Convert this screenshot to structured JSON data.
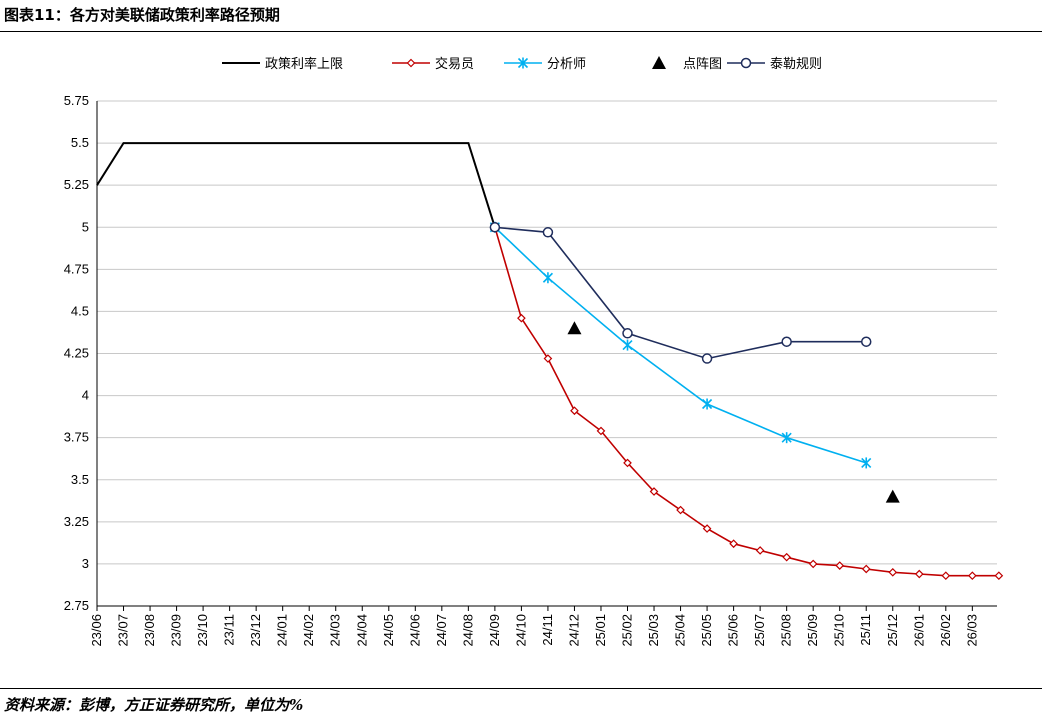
{
  "figure": {
    "title": "图表11：各方对美联储政策利率路径预期",
    "source": "资料来源：彭博，方正证券研究所，单位为%"
  },
  "colors": {
    "upper_bound": "#000000",
    "traders": "#c00000",
    "analysts": "#00b0f0",
    "dot_plot": "#000000",
    "taylor_rule": "#1f2d5c",
    "grid": "#c8c8c8"
  },
  "chart_data": {
    "type": "line",
    "title": "",
    "xlabel": "",
    "ylabel": "",
    "ylim": [
      2.75,
      5.75
    ],
    "yticks": [
      2.75,
      3,
      3.25,
      3.5,
      3.75,
      4,
      4.25,
      4.5,
      4.75,
      5,
      5.25,
      5.5,
      5.75
    ],
    "ytick_labels": [
      "2.75",
      "3",
      "3.25",
      "3.5",
      "3.75",
      "4",
      "4.25",
      "4.5",
      "4.75",
      "5",
      "5.25",
      "5.5",
      "5.75"
    ],
    "categories": [
      "23/06",
      "23/07",
      "23/08",
      "23/09",
      "23/10",
      "23/11",
      "23/12",
      "24/01",
      "24/02",
      "24/03",
      "24/04",
      "24/05",
      "24/06",
      "24/07",
      "24/08",
      "24/09",
      "24/10",
      "24/11",
      "24/12",
      "25/01",
      "25/02",
      "25/03",
      "25/04",
      "25/05",
      "25/06",
      "25/07",
      "25/08",
      "25/09",
      "25/10",
      "25/11",
      "25/12",
      "26/01",
      "26/02",
      "26/03"
    ],
    "grid": true,
    "legend_position": "top",
    "series": [
      {
        "name": "政策利率上限",
        "key": "upper_bound",
        "marker": "none",
        "points": [
          {
            "x": 0,
            "y": 5.25
          },
          {
            "x": 1,
            "y": 5.5
          },
          {
            "x": 2,
            "y": 5.5
          },
          {
            "x": 3,
            "y": 5.5
          },
          {
            "x": 4,
            "y": 5.5
          },
          {
            "x": 5,
            "y": 5.5
          },
          {
            "x": 6,
            "y": 5.5
          },
          {
            "x": 7,
            "y": 5.5
          },
          {
            "x": 8,
            "y": 5.5
          },
          {
            "x": 9,
            "y": 5.5
          },
          {
            "x": 10,
            "y": 5.5
          },
          {
            "x": 11,
            "y": 5.5
          },
          {
            "x": 12,
            "y": 5.5
          },
          {
            "x": 13,
            "y": 5.5
          },
          {
            "x": 14,
            "y": 5.5
          },
          {
            "x": 15,
            "y": 5.0
          }
        ]
      },
      {
        "name": "交易员",
        "key": "traders",
        "marker": "diamond",
        "points": [
          {
            "x": 15,
            "y": 5.0
          },
          {
            "x": 16,
            "y": 4.46
          },
          {
            "x": 17,
            "y": 4.22
          },
          {
            "x": 18,
            "y": 3.91
          },
          {
            "x": 19,
            "y": 3.79
          },
          {
            "x": 20,
            "y": 3.6
          },
          {
            "x": 21,
            "y": 3.43
          },
          {
            "x": 22,
            "y": 3.32
          },
          {
            "x": 23,
            "y": 3.21
          },
          {
            "x": 24,
            "y": 3.12
          },
          {
            "x": 25,
            "y": 3.08
          },
          {
            "x": 26,
            "y": 3.04
          },
          {
            "x": 27,
            "y": 3.0
          },
          {
            "x": 28,
            "y": 2.99
          },
          {
            "x": 29,
            "y": 2.97
          },
          {
            "x": 30,
            "y": 2.95
          },
          {
            "x": 31,
            "y": 2.94
          },
          {
            "x": 32,
            "y": 2.93
          },
          {
            "x": 33,
            "y": 2.93
          },
          {
            "x": 34,
            "y": 2.93
          }
        ]
      },
      {
        "name": "分析师",
        "key": "analysts",
        "marker": "star",
        "points": [
          {
            "x": 15,
            "y": 5.0
          },
          {
            "x": 17,
            "y": 4.7
          },
          {
            "x": 20,
            "y": 4.3
          },
          {
            "x": 23,
            "y": 3.95
          },
          {
            "x": 26,
            "y": 3.75
          },
          {
            "x": 29,
            "y": 3.6
          }
        ]
      },
      {
        "name": "点阵图",
        "key": "dot_plot",
        "marker": "triangle",
        "line": false,
        "points": [
          {
            "x": 18,
            "y": 4.4
          },
          {
            "x": 30,
            "y": 3.4
          }
        ]
      },
      {
        "name": "泰勒规则",
        "key": "taylor_rule",
        "marker": "circle",
        "points": [
          {
            "x": 15,
            "y": 5.0
          },
          {
            "x": 17,
            "y": 4.97
          },
          {
            "x": 20,
            "y": 4.37
          },
          {
            "x": 23,
            "y": 4.22
          },
          {
            "x": 26,
            "y": 4.32
          },
          {
            "x": 29,
            "y": 4.32
          }
        ]
      }
    ]
  }
}
